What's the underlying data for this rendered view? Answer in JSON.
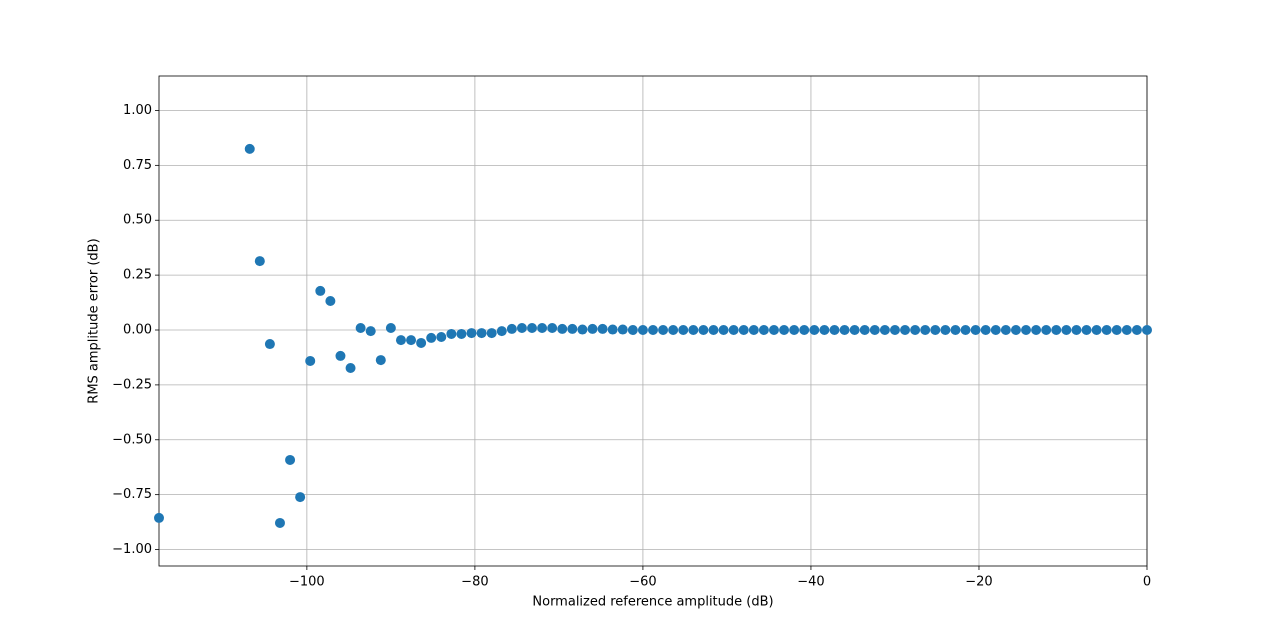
{
  "chart_data": {
    "type": "scatter",
    "x_label": "Normalized reference amplitude (dB)",
    "y_label": "RMS amplitude error (dB)",
    "color": "#1f77b4",
    "grid": true,
    "xlim": [
      -117.6,
      0
    ],
    "ylim": [
      -1.075,
      1.157
    ],
    "xticks": [
      {
        "value": -100,
        "label": "−100"
      },
      {
        "value": -80,
        "label": "−80"
      },
      {
        "value": -60,
        "label": "−60"
      },
      {
        "value": -40,
        "label": "−40"
      },
      {
        "value": -20,
        "label": "−20"
      },
      0
    ],
    "yticks": [
      {
        "value": -1,
        "label": "−1.00"
      },
      {
        "value": -0.75,
        "label": "−0.75"
      },
      {
        "value": -0.5,
        "label": "−0.50"
      },
      {
        "value": -0.25,
        "label": "−0.25"
      },
      {
        "value": 0,
        "label": "0.00"
      },
      {
        "value": 0.25,
        "label": "0.25"
      },
      {
        "value": 0.5,
        "label": "0.50"
      },
      {
        "value": 0.75,
        "label": "0.75"
      },
      {
        "value": 1,
        "label": "1.00"
      }
    ],
    "x": [
      -117.6,
      -106.8,
      -105.6,
      -104.4,
      -103.2,
      -102,
      -100.8,
      -99.6,
      -98.4,
      -97.2,
      -96,
      -94.8,
      -93.6,
      -92.4,
      -91.2,
      -90,
      -88.8,
      -87.6,
      -86.4,
      -85.2,
      -84,
      -82.8,
      -81.6,
      -80.4,
      -79.2,
      -78,
      -76.8,
      -75.6,
      -74.4,
      -73.2,
      -72,
      -70.8,
      -69.6,
      -68.4,
      -67.2,
      -66,
      -64.8,
      -63.6,
      -62.4,
      -61.2,
      -60,
      -58.8,
      -57.6,
      -56.4,
      -55.2,
      -54,
      -52.8,
      -51.6,
      -50.4,
      -49.2,
      -48,
      -46.8,
      -45.6,
      -44.4,
      -43.2,
      -42,
      -40.8,
      -39.6,
      -38.4,
      -37.2,
      -36,
      -34.8,
      -33.6,
      -32.4,
      -31.2,
      -30,
      -28.8,
      -27.6,
      -26.4,
      -25.2,
      -24,
      -22.8,
      -21.6,
      -20.4,
      -19.2,
      -18,
      -16.8,
      -15.6,
      -14.4,
      -13.2,
      -12,
      -10.8,
      -9.6,
      -8.4,
      -7.2,
      -6,
      -4.8,
      -3.6,
      -2.4,
      -1.2,
      0
    ],
    "values": [
      -0.856,
      0.825,
      0.314,
      -0.064,
      -0.879,
      -0.592,
      -0.761,
      -0.141,
      0.178,
      0.132,
      -0.118,
      -0.173,
      0.009,
      -0.005,
      -0.137,
      0.009,
      -0.046,
      -0.046,
      -0.059,
      -0.036,
      -0.032,
      -0.018,
      -0.018,
      -0.014,
      -0.014,
      -0.014,
      -0.005,
      0.005,
      0.009,
      0.009,
      0.009,
      0.009,
      0.005,
      0.005,
      0.002,
      0.005,
      0.005,
      0.002,
      0.002,
      0,
      0,
      0,
      0,
      0,
      0,
      0,
      0,
      0,
      0,
      0,
      0,
      0,
      0,
      0,
      0,
      0,
      0,
      0,
      0,
      0,
      0,
      0,
      0,
      0,
      0,
      0,
      0,
      0,
      0,
      0,
      0,
      0,
      0,
      0,
      0,
      0,
      0,
      0,
      0,
      0,
      0,
      0,
      0,
      0,
      0,
      0,
      0,
      0,
      0,
      0,
      0
    ]
  }
}
